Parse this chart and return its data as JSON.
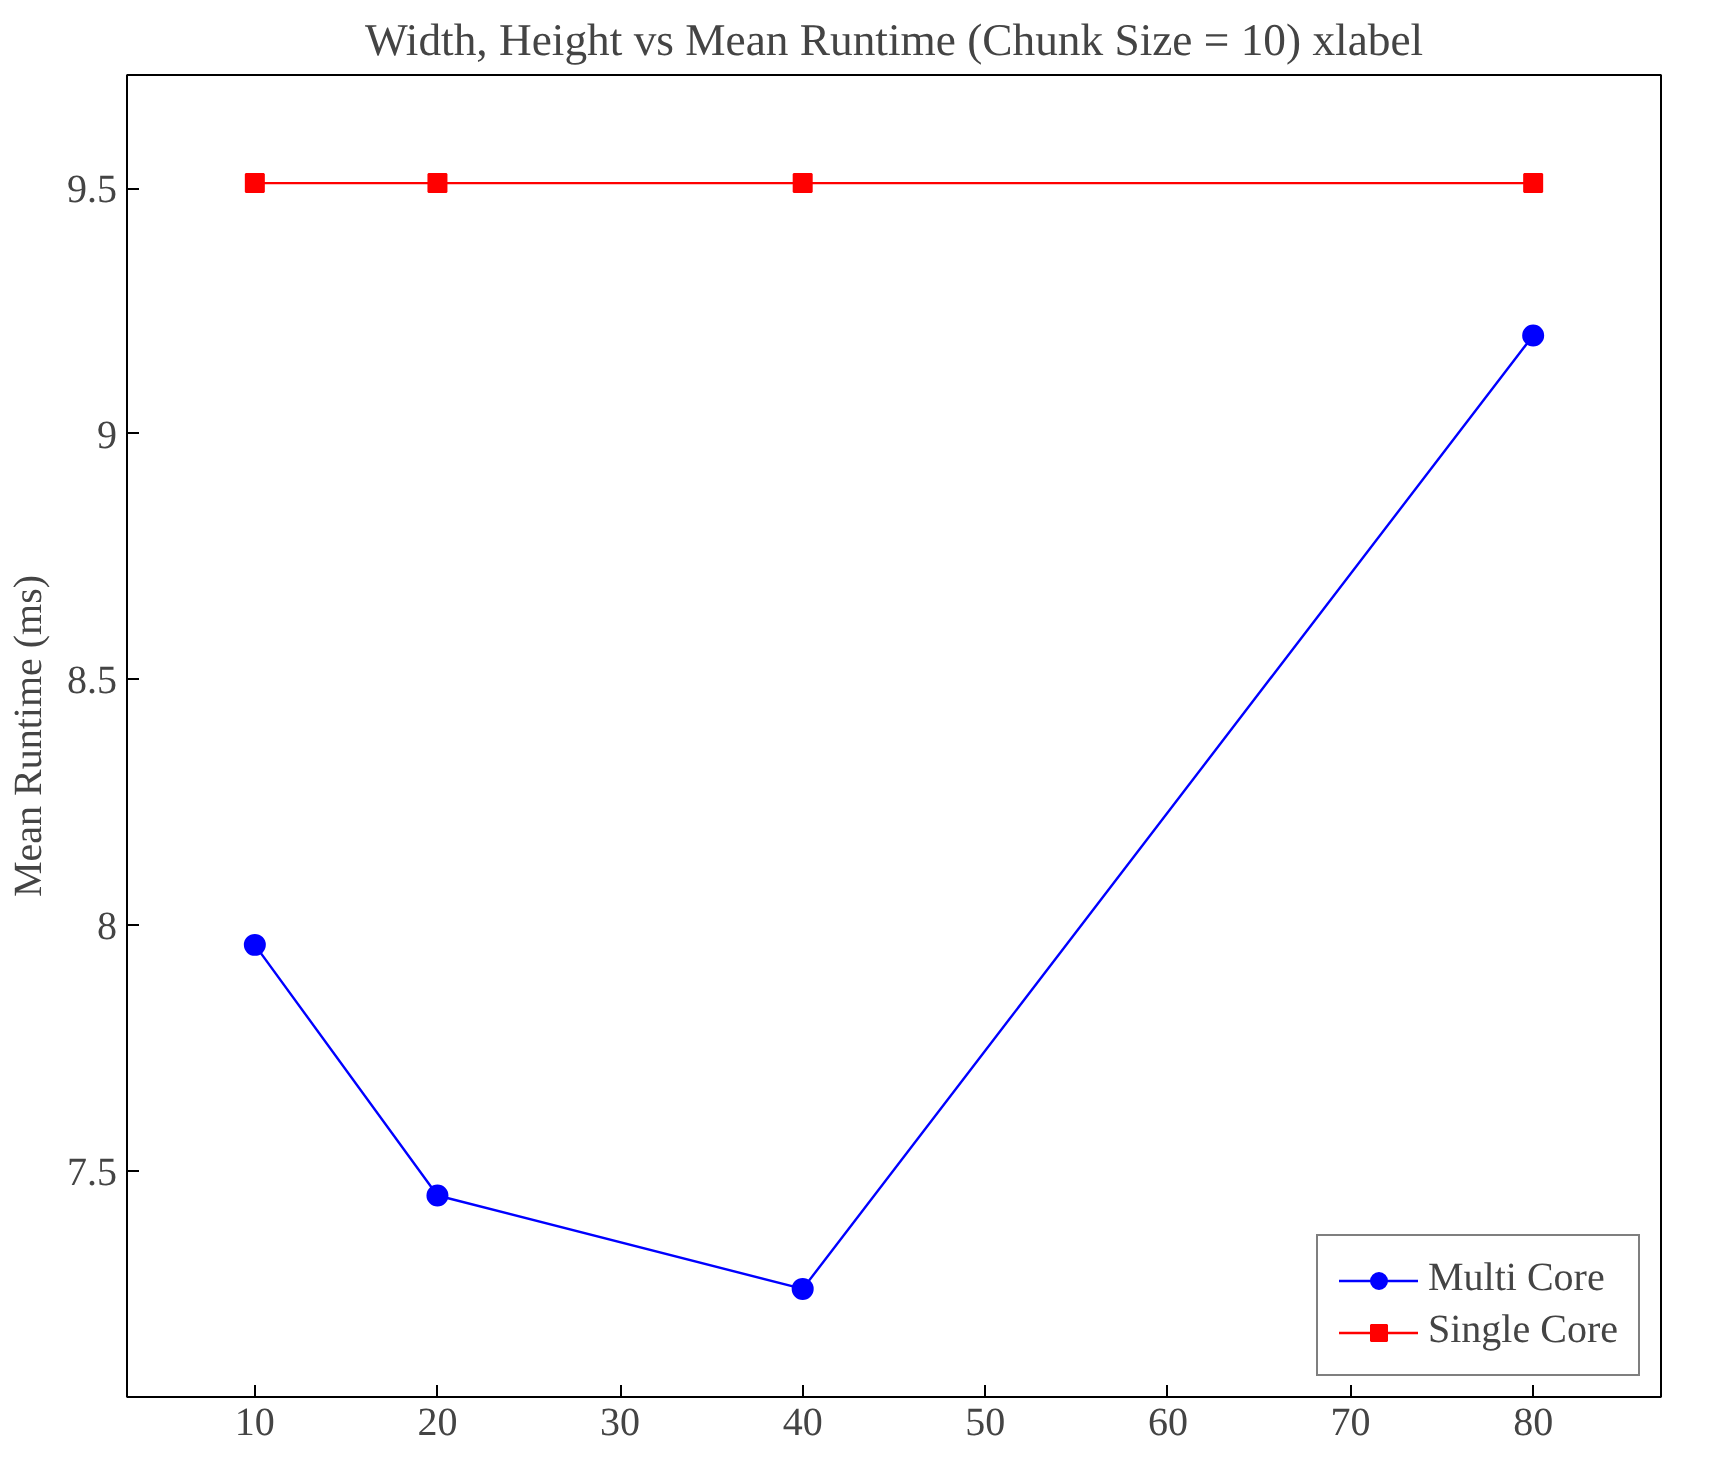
{
  "chart_data": {
    "type": "line",
    "title": "Width, Height vs Mean Runtime (Chunk Size = 10) xlabel",
    "ylabel": "Mean Runtime (ms)",
    "x": [
      10,
      20,
      40,
      80
    ],
    "series": [
      {
        "name": "Multi Core",
        "color": "#0000ff",
        "marker": "circle",
        "values": [
          7.96,
          7.45,
          7.26,
          9.2
        ]
      },
      {
        "name": "Single Core",
        "color": "#ff0000",
        "marker": "square",
        "values": [
          9.51,
          9.51,
          9.51,
          9.51
        ]
      }
    ],
    "xlim": [
      3,
      87
    ],
    "ylim": [
      7.04,
      9.73
    ],
    "xticks": [
      10,
      20,
      30,
      40,
      50,
      60,
      70,
      80
    ],
    "yticks": [
      {
        "value": 7.5,
        "label": "7.5"
      },
      {
        "value": 8,
        "label": "8"
      },
      {
        "value": 8.5,
        "label": "8.5"
      },
      {
        "value": 9,
        "label": "9"
      },
      {
        "value": 9.5,
        "label": "9.5"
      }
    ],
    "grid": false,
    "legend": "bottom right",
    "line_style": "solid"
  }
}
